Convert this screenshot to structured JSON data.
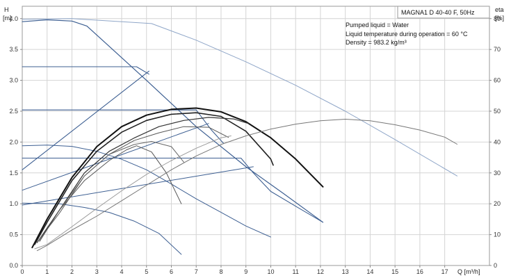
{
  "chart_data": {
    "type": "line",
    "title": "MAGNA1 D 40-40 F, 50Hz",
    "annotations": [
      "Pumped liquid = Water",
      "Liquid temperature during operation = 60 °C",
      "Density = 983.2 kg/m³"
    ],
    "x_axis": {
      "label": "Q [m³/h]",
      "range": [
        0,
        18.8
      ],
      "ticks": [
        0,
        1,
        2,
        3,
        4,
        5,
        6,
        7,
        8,
        9,
        10,
        11,
        12,
        13,
        14,
        15,
        16,
        17
      ]
    },
    "y_left": {
      "label_top": "H",
      "label_bottom": "[m]",
      "range": [
        0,
        4.2
      ],
      "ticks": [
        "0.0",
        "0.5",
        "1.0",
        "1.5",
        "2.0",
        "2.5",
        "3.0",
        "3.5",
        "4.0"
      ]
    },
    "y_right": {
      "label_top": "eta",
      "label_bottom": "[%]",
      "range": [
        0,
        84
      ],
      "ticks": [
        "0",
        "10",
        "20",
        "30",
        "40",
        "50",
        "60",
        "70",
        "80"
      ]
    },
    "grid": true,
    "head_curves": [
      {
        "color": "#8fa6c8",
        "width": 1.0,
        "points": [
          [
            0,
            3.99
          ],
          [
            2,
            4.0
          ],
          [
            5.2,
            3.92
          ],
          [
            7,
            3.65
          ],
          [
            9,
            3.3
          ],
          [
            11,
            2.92
          ],
          [
            13,
            2.5
          ],
          [
            15,
            2.04
          ],
          [
            17.5,
            1.45
          ]
        ]
      },
      {
        "color": "#3d5f92",
        "width": 1.2,
        "points": [
          [
            0,
            3.95
          ],
          [
            1,
            3.98
          ],
          [
            2,
            3.96
          ],
          [
            2.6,
            3.88
          ],
          [
            3.5,
            3.55
          ],
          [
            5,
            3.0
          ],
          [
            7,
            2.25
          ],
          [
            9,
            1.6
          ],
          [
            10.5,
            1.17
          ],
          [
            12.1,
            0.7
          ]
        ]
      },
      {
        "color": "#3d5f92",
        "width": 1.1,
        "points": [
          [
            0,
            3.22
          ],
          [
            4.6,
            3.22
          ],
          [
            5.1,
            3.1
          ]
        ]
      },
      {
        "color": "#3d5f92",
        "width": 1.1,
        "points": [
          [
            0,
            2.52
          ],
          [
            7,
            2.52
          ],
          [
            7.6,
            2.2
          ],
          [
            8.1,
            1.98
          ]
        ]
      },
      {
        "color": "#3d5f92",
        "width": 1.1,
        "points": [
          [
            0,
            1.74
          ],
          [
            8.8,
            1.74
          ],
          [
            9.3,
            1.5
          ],
          [
            10,
            1.2
          ],
          [
            11,
            0.96
          ],
          [
            12.1,
            0.7
          ]
        ]
      },
      {
        "color": "#3d5f92",
        "width": 1.0,
        "points": [
          [
            0,
            1.94
          ],
          [
            1,
            1.95
          ],
          [
            2,
            1.93
          ],
          [
            3,
            1.85
          ],
          [
            4,
            1.72
          ],
          [
            5,
            1.55
          ],
          [
            6,
            1.32
          ],
          [
            7,
            1.08
          ],
          [
            8,
            0.86
          ],
          [
            9,
            0.64
          ],
          [
            10,
            0.46
          ]
        ]
      },
      {
        "color": "#3d5f92",
        "width": 1.0,
        "points": [
          [
            0,
            1.01
          ],
          [
            1.5,
            1.0
          ],
          [
            2.5,
            0.94
          ],
          [
            3.5,
            0.86
          ],
          [
            4.5,
            0.72
          ],
          [
            5.5,
            0.52
          ],
          [
            6.4,
            0.18
          ]
        ]
      }
    ],
    "system_curves": [
      {
        "color": "#3d5f92",
        "width": 1.1,
        "points": [
          [
            0,
            1.55
          ],
          [
            5.1,
            3.15
          ]
        ]
      },
      {
        "color": "#3d5f92",
        "width": 1.0,
        "points": [
          [
            0,
            1.22
          ],
          [
            7.5,
            2.3
          ]
        ]
      },
      {
        "color": "#3d5f92",
        "width": 1.0,
        "points": [
          [
            0,
            0.98
          ],
          [
            9.3,
            1.6
          ]
        ]
      }
    ],
    "efficiency_curves": [
      {
        "color": "#111111",
        "width": 2.0,
        "points": [
          [
            0.4,
            5.8
          ],
          [
            1,
            15
          ],
          [
            2,
            28.5
          ],
          [
            3,
            38.5
          ],
          [
            4,
            45
          ],
          [
            5,
            48.7
          ],
          [
            6,
            50.6
          ],
          [
            7,
            51
          ],
          [
            8,
            49.8
          ],
          [
            9,
            46.6
          ],
          [
            10,
            41.4
          ],
          [
            11,
            34.5
          ],
          [
            12.1,
            25.5
          ]
        ]
      },
      {
        "color": "#222222",
        "width": 1.6,
        "points": [
          [
            0.5,
            6.8
          ],
          [
            1,
            14
          ],
          [
            2,
            27.5
          ],
          [
            3,
            37
          ],
          [
            4,
            43.2
          ],
          [
            5,
            47
          ],
          [
            6,
            49
          ],
          [
            7,
            49.5
          ],
          [
            8,
            48.3
          ],
          [
            9,
            43.5
          ],
          [
            10,
            34.5
          ],
          [
            10.1,
            32.5
          ]
        ]
      },
      {
        "color": "#333333",
        "width": 1.2,
        "points": [
          [
            0.6,
            7.4
          ],
          [
            1.5,
            18
          ],
          [
            2.5,
            30
          ],
          [
            3.5,
            37
          ],
          [
            4.5,
            41.3
          ],
          [
            5.5,
            45
          ],
          [
            6.5,
            47
          ],
          [
            7.5,
            48
          ],
          [
            8.5,
            47.5
          ],
          [
            9.1,
            46
          ]
        ]
      },
      {
        "color": "#555555",
        "width": 1.0,
        "points": [
          [
            0.6,
            7.5
          ],
          [
            1.5,
            17
          ],
          [
            2.5,
            29
          ],
          [
            3.5,
            36
          ],
          [
            4.5,
            40.5
          ],
          [
            5.5,
            43
          ],
          [
            6.5,
            45
          ],
          [
            7.5,
            44.8
          ],
          [
            8.3,
            41.5
          ]
        ]
      },
      {
        "color": "#666666",
        "width": 1.0,
        "points": [
          [
            0.7,
            7.8
          ],
          [
            1.5,
            18
          ],
          [
            2.5,
            29
          ],
          [
            3.5,
            36
          ],
          [
            4.5,
            39.2
          ],
          [
            5.2,
            40.2
          ],
          [
            6,
            38.5
          ],
          [
            6.5,
            33.5
          ]
        ]
      },
      {
        "color": "#555555",
        "width": 1.0,
        "points": [
          [
            0.7,
            8
          ],
          [
            1.5,
            18
          ],
          [
            2.5,
            27.5
          ],
          [
            3.5,
            34
          ],
          [
            4.2,
            37.5
          ],
          [
            4.6,
            38.8
          ],
          [
            5.2,
            36.8
          ],
          [
            5.8,
            30
          ],
          [
            6.4,
            20
          ]
        ]
      },
      {
        "color": "#777777",
        "width": 1.0,
        "points": [
          [
            0.6,
            4.8
          ],
          [
            1,
            6.5
          ],
          [
            2,
            11.5
          ],
          [
            3,
            16
          ],
          [
            4,
            21
          ],
          [
            5,
            26
          ],
          [
            6,
            31
          ],
          [
            7,
            35.5
          ],
          [
            8,
            39.2
          ],
          [
            9,
            42
          ],
          [
            10,
            44.2
          ],
          [
            11,
            45.8
          ],
          [
            12,
            46.9
          ],
          [
            13,
            47.4
          ],
          [
            14,
            46.9
          ],
          [
            15,
            45.6
          ],
          [
            16,
            43.9
          ],
          [
            17,
            41.6
          ],
          [
            17.5,
            39.3
          ]
        ]
      },
      {
        "color": "#9a9a9a",
        "width": 1.0,
        "points": [
          [
            0.5,
            5.4
          ],
          [
            1,
            6.8
          ],
          [
            2,
            12.6
          ],
          [
            3,
            18.5
          ],
          [
            4,
            24.2
          ],
          [
            5,
            29.5
          ],
          [
            6,
            34
          ],
          [
            7,
            38
          ],
          [
            8,
            41.4
          ],
          [
            8.4,
            42
          ]
        ]
      }
    ]
  }
}
